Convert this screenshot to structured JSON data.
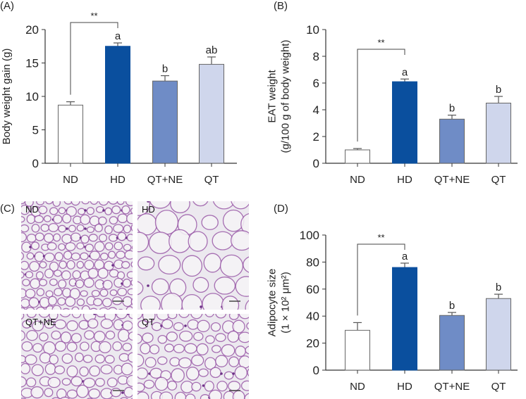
{
  "panels": {
    "a": "(A)",
    "b": "(B)",
    "c": "(C)",
    "d": "(D)"
  },
  "histology": {
    "labels": [
      "ND",
      "HD",
      "QT+NE",
      "QT"
    ],
    "stain_color": "#9a5aa8",
    "background": "#ece9ef"
  },
  "colors": [
    "#ffffff",
    "#0a4f9e",
    "#6f8cc6",
    "#cfd6ec"
  ],
  "chart_data": [
    {
      "type": "bar",
      "categories": [
        "ND",
        "HD",
        "QT+NE",
        "QT"
      ],
      "values": [
        8.7,
        17.5,
        12.3,
        14.8
      ],
      "errors": [
        0.5,
        0.5,
        0.8,
        1.1
      ],
      "letters": [
        "",
        "a",
        "b",
        "ab"
      ],
      "ylabel": [
        "Body weight gain (g)"
      ],
      "ylim": [
        0,
        20
      ],
      "yticks": [
        "0",
        "5",
        "10",
        "15",
        "20"
      ],
      "significance": {
        "from": "ND",
        "to": "HD",
        "label": "**"
      }
    },
    {
      "type": "bar",
      "categories": [
        "ND",
        "HD",
        "QT+NE",
        "QT"
      ],
      "values": [
        1.0,
        6.1,
        3.3,
        4.5
      ],
      "errors": [
        0.1,
        0.2,
        0.3,
        0.5
      ],
      "letters": [
        "",
        "a",
        "b",
        "b"
      ],
      "ylabel": [
        "EAT weight",
        "(g/100 g of body weight)"
      ],
      "ylim": [
        0,
        10
      ],
      "yticks": [
        "0",
        "2",
        "4",
        "6",
        "8",
        "10"
      ],
      "significance": {
        "from": "ND",
        "to": "HD",
        "label": "**"
      }
    },
    {
      "type": "bar",
      "categories": [
        "ND",
        "HD",
        "QT+NE",
        "QT"
      ],
      "values": [
        29.5,
        76,
        40.5,
        53
      ],
      "errors": [
        5.7,
        3.2,
        2.2,
        3.2
      ],
      "letters": [
        "",
        "a",
        "b",
        "b"
      ],
      "ylabel": [
        "Adipocyte size",
        "(1 × 10² μm²)"
      ],
      "ylim": [
        0,
        100
      ],
      "yticks": [
        "0",
        "20",
        "40",
        "60",
        "80",
        "100"
      ],
      "significance": {
        "from": "ND",
        "to": "HD",
        "label": "**"
      }
    }
  ]
}
